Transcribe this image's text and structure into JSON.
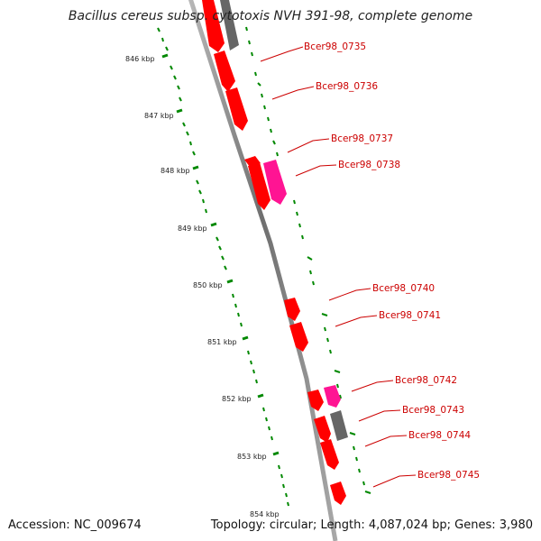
{
  "title": "Bacillus cereus subsp. cytotoxis NVH 391-98, complete genome",
  "footer": {
    "accession": "Accession: NC_009674",
    "summary": "Topology: circular; Length: 4,087,024 bp; Genes: 3,980"
  },
  "scale_labels": [
    "846 kbp",
    "847 kbp",
    "848 kbp",
    "849 kbp",
    "850 kbp",
    "851 kbp",
    "852 kbp",
    "853 kbp",
    "854 kbp"
  ],
  "gene_labels": [
    "Bcer98_0735",
    "Bcer98_0736",
    "Bcer98_0737",
    "Bcer98_0738",
    "Bcer98_0740",
    "Bcer98_0741",
    "Bcer98_0742",
    "Bcer98_0743",
    "Bcer98_0744",
    "Bcer98_0745"
  ],
  "colors": {
    "cds": "#ff0000",
    "rna": "#ff1493",
    "other": "#555555",
    "backbone": "#777777",
    "tick": "#008800",
    "label_line": "#cc0000"
  }
}
